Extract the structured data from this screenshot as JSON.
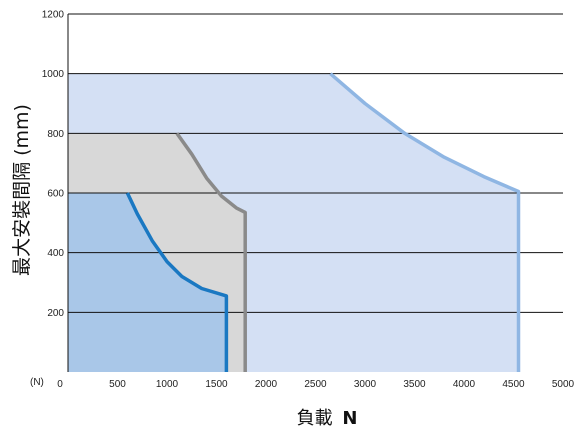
{
  "chart_data": {
    "type": "area",
    "ylabel": "最大安裝間隔 (mm)",
    "xlabel": "負載",
    "xlabel_unit": "N",
    "x_unit_marker": "(N)",
    "x_ticks": [
      0,
      500,
      1000,
      1500,
      2000,
      2500,
      3000,
      3500,
      4000,
      4500,
      5000
    ],
    "y_ticks": [
      200,
      400,
      600,
      800,
      1000,
      1200
    ],
    "xlim": [
      0,
      5000
    ],
    "ylim": [
      0,
      1200
    ],
    "grid": "horizontal",
    "series": [
      {
        "color": "#8fb6e3",
        "fill": "#d4e0f4",
        "points": [
          [
            0,
            1000
          ],
          [
            2650,
            1000
          ],
          [
            3000,
            900
          ],
          [
            3400,
            800
          ],
          [
            3800,
            720
          ],
          [
            4200,
            655
          ],
          [
            4550,
            605
          ],
          [
            4550,
            0
          ]
        ]
      },
      {
        "color": "#8a8a8a",
        "fill": "#d8d8d8",
        "points": [
          [
            0,
            800
          ],
          [
            1100,
            800
          ],
          [
            1250,
            730
          ],
          [
            1400,
            650
          ],
          [
            1550,
            590
          ],
          [
            1700,
            550
          ],
          [
            1790,
            535
          ],
          [
            1790,
            0
          ]
        ]
      },
      {
        "color": "#1a78c2",
        "fill": "#a9c7e8",
        "points": [
          [
            0,
            600
          ],
          [
            600,
            600
          ],
          [
            700,
            530
          ],
          [
            850,
            440
          ],
          [
            1000,
            370
          ],
          [
            1150,
            320
          ],
          [
            1350,
            280
          ],
          [
            1600,
            255
          ],
          [
            1600,
            0
          ]
        ]
      }
    ]
  }
}
